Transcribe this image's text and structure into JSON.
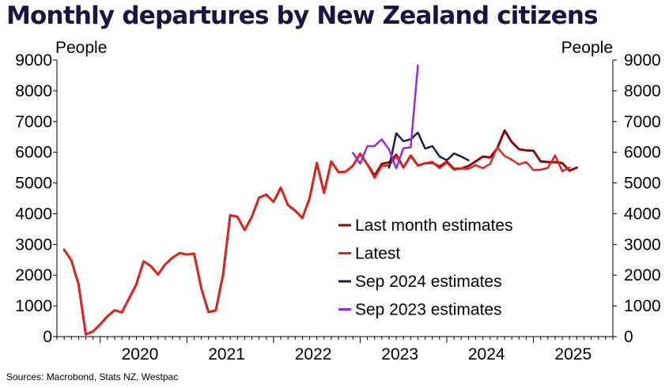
{
  "title": "Monthly departures by New Zealand citizens",
  "source": "Sources: Macrobond, Stats NZ, Westpac",
  "chart_data": {
    "type": "line",
    "title": "Monthly departures by New Zealand citizens",
    "ylabel_left": "People",
    "ylabel_right": "People",
    "ylim": [
      0,
      9000
    ],
    "yticks": [
      0,
      1000,
      2000,
      3000,
      4000,
      5000,
      6000,
      7000,
      8000,
      9000
    ],
    "xlim": [
      "2019-07",
      "2025-12"
    ],
    "xtick_labels": [
      "2020",
      "2021",
      "2022",
      "2023",
      "2024",
      "2025"
    ],
    "grid": false,
    "legend_position": "center-right",
    "series": [
      {
        "name": "Last month estimates",
        "color": "#8b0a0a",
        "start": "2019-08",
        "values": [
          2830,
          2480,
          1700,
          70,
          170,
          400,
          660,
          860,
          790,
          1250,
          1700,
          2450,
          2300,
          2020,
          2350,
          2570,
          2720,
          2670,
          2700,
          1570,
          800,
          850,
          2000,
          3950,
          3900,
          3470,
          3900,
          4520,
          4620,
          4380,
          4850,
          4280,
          4100,
          3860,
          4500,
          5650,
          4680,
          5700,
          5350,
          5370,
          5560,
          5950,
          5600,
          5240,
          5620,
          5670,
          5920,
          5500,
          5890,
          5570,
          5640,
          5660,
          5530,
          5690,
          5460,
          5470,
          5550,
          5700,
          5860,
          5830,
          6130,
          6710,
          6330,
          6100,
          6060,
          6050,
          5700,
          5680,
          5680,
          5650,
          5400,
          5500
        ]
      },
      {
        "name": "Latest",
        "color": "#e0251b",
        "start": "2019-08",
        "values": [
          2830,
          2480,
          1700,
          70,
          170,
          400,
          660,
          860,
          790,
          1250,
          1700,
          2450,
          2300,
          2020,
          2350,
          2570,
          2720,
          2670,
          2700,
          1570,
          800,
          850,
          2000,
          3950,
          3900,
          3470,
          3900,
          4520,
          4620,
          4380,
          4850,
          4280,
          4100,
          3860,
          4500,
          5650,
          4680,
          5700,
          5350,
          5370,
          5560,
          5950,
          5600,
          5160,
          5550,
          5570,
          5860,
          5500,
          5870,
          5570,
          5640,
          5690,
          5480,
          5660,
          5430,
          5470,
          5460,
          5580,
          5480,
          5620,
          6160,
          5880,
          5760,
          5600,
          5680,
          5420,
          5430,
          5490,
          5900,
          5380,
          5500
        ]
      },
      {
        "name": "Sep 2024 estimates",
        "color": "#1e1a4d",
        "start": "2023-05",
        "values": [
          5500,
          6620,
          6360,
          6420,
          6640,
          6120,
          6200,
          5860,
          5740,
          5960,
          5860,
          5740
        ]
      },
      {
        "name": "Sep 2023 estimates",
        "color": "#9a28d6",
        "start": "2022-12",
        "values": [
          5980,
          5630,
          6200,
          6200,
          6420,
          6090,
          5480,
          6130,
          6160,
          8830
        ]
      }
    ]
  }
}
